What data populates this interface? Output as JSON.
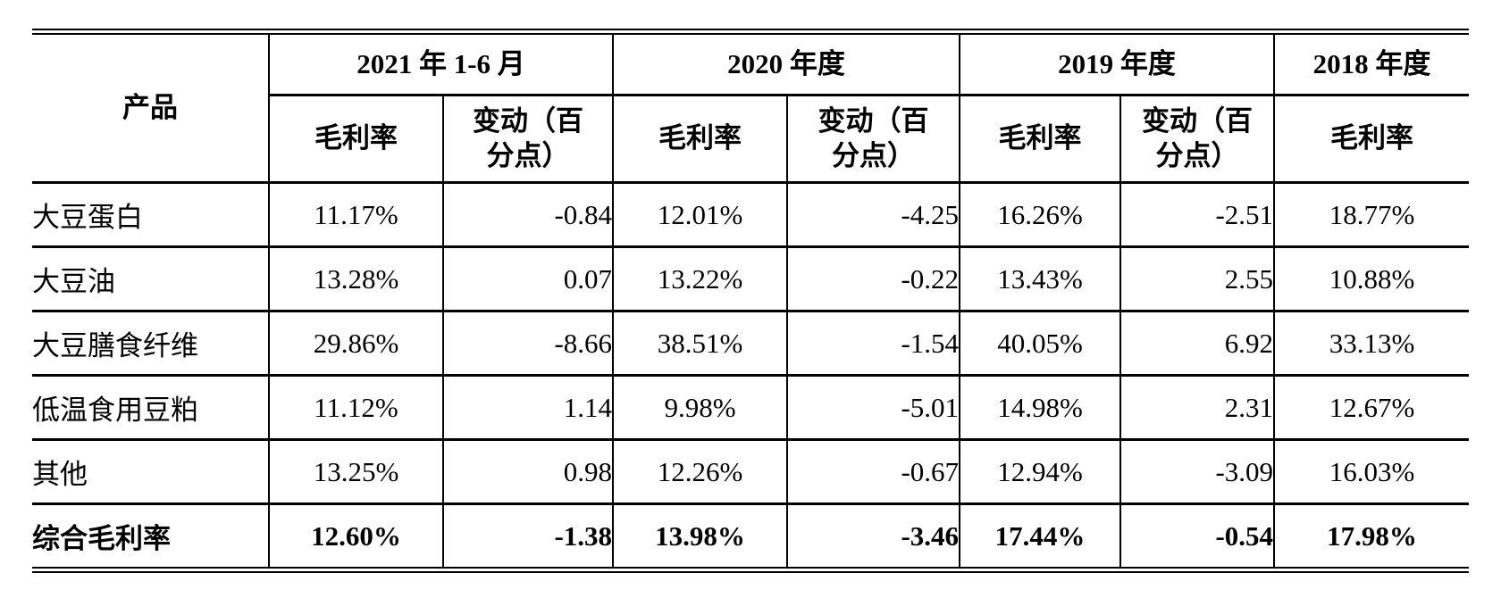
{
  "table": {
    "header": {
      "product": "产品",
      "periods": [
        {
          "label": "2021 年 1-6 月",
          "sub": [
            "毛利率",
            "变动（百\n分点）"
          ]
        },
        {
          "label": "2020 年度",
          "sub": [
            "毛利率",
            "变动（百\n分点）"
          ]
        },
        {
          "label": "2019 年度",
          "sub": [
            "毛利率",
            "变动（百\n分点）"
          ]
        },
        {
          "label": "2018 年度",
          "sub": [
            "毛利率"
          ]
        }
      ]
    },
    "rows": [
      {
        "product": "大豆蛋白",
        "values": [
          "11.17%",
          "-0.84",
          "12.01%",
          "-4.25",
          "16.26%",
          "-2.51",
          "18.77%"
        ]
      },
      {
        "product": "大豆油",
        "values": [
          "13.28%",
          "0.07",
          "13.22%",
          "-0.22",
          "13.43%",
          "2.55",
          "10.88%"
        ]
      },
      {
        "product": "大豆膳食纤维",
        "values": [
          "29.86%",
          "-8.66",
          "38.51%",
          "-1.54",
          "40.05%",
          "6.92",
          "33.13%"
        ]
      },
      {
        "product": "低温食用豆粕",
        "values": [
          "11.12%",
          "1.14",
          "9.98%",
          "-5.01",
          "14.98%",
          "2.31",
          "12.67%"
        ]
      },
      {
        "product": "其他",
        "values": [
          "13.25%",
          "0.98",
          "12.26%",
          "-0.67",
          "12.94%",
          "-3.09",
          "16.03%"
        ]
      },
      {
        "product": "综合毛利率",
        "values": [
          "12.60%",
          "-1.38",
          "13.98%",
          "-3.46",
          "17.44%",
          "-0.54",
          "17.98%"
        ]
      }
    ],
    "colors": {
      "text": "#000000",
      "border": "#000000",
      "background": "#ffffff"
    }
  }
}
